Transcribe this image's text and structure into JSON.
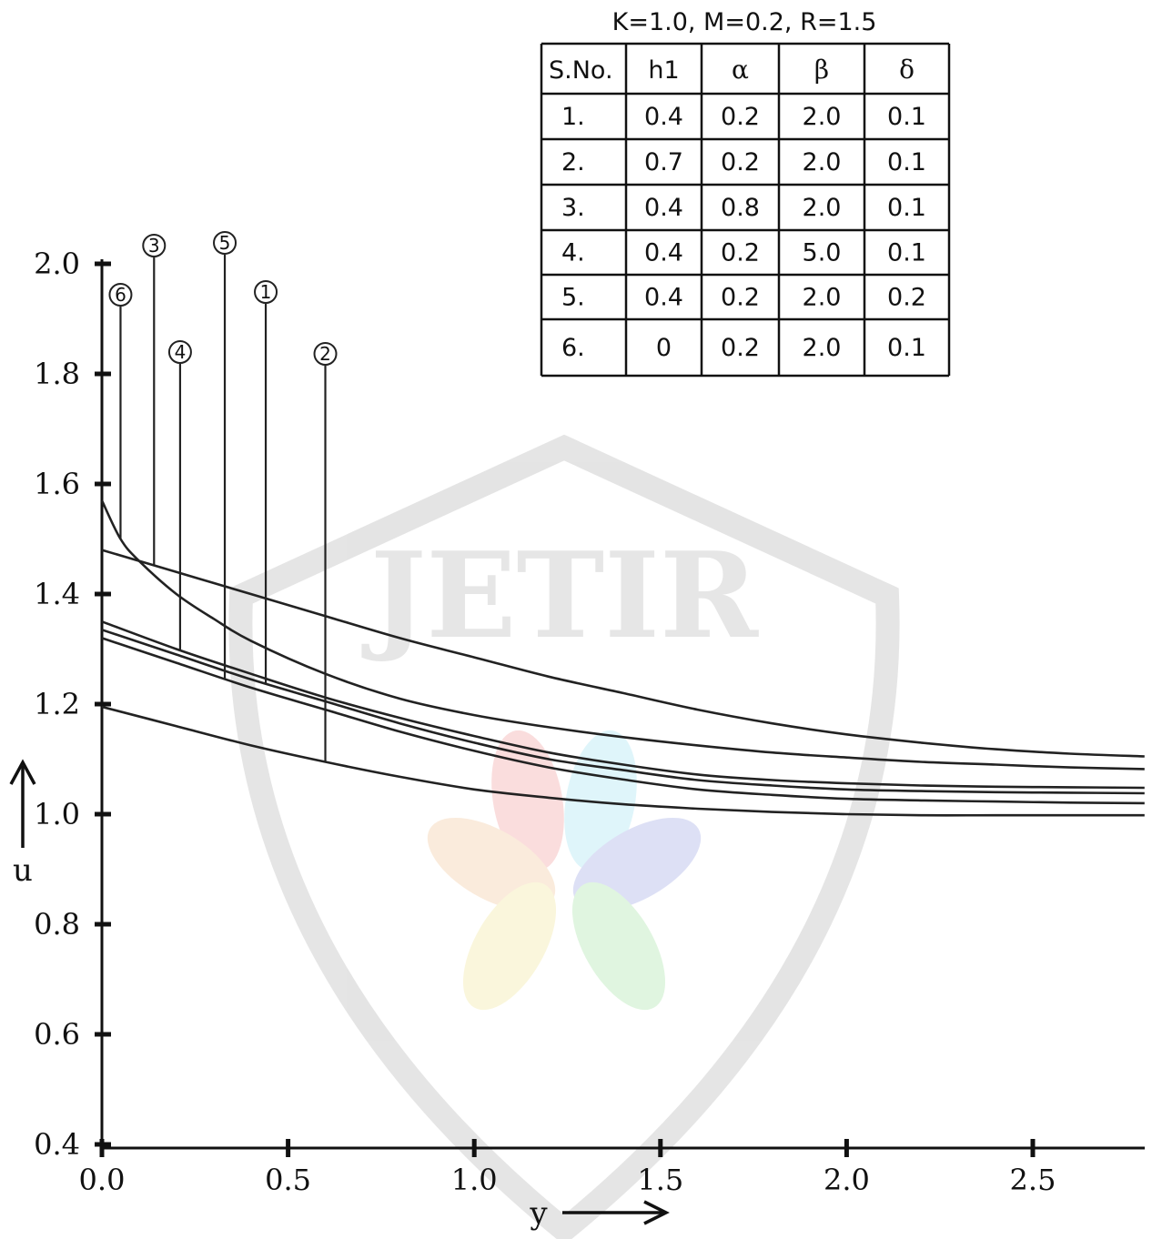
{
  "watermark": {
    "text": "JETIR"
  },
  "chart_data": {
    "type": "line",
    "xlabel": "y",
    "ylabel": "u",
    "xlim": [
      0.0,
      2.8
    ],
    "ylim": [
      0.4,
      2.0
    ],
    "x_ticks": [
      "0.0",
      "0.5",
      "1.0",
      "1.5",
      "2.0",
      "2.5"
    ],
    "y_ticks": [
      "0.4",
      "0.6",
      "0.8",
      "1.0",
      "1.2",
      "1.4",
      "1.6",
      "1.8",
      "2.0"
    ],
    "series": [
      {
        "name": "1",
        "x": [
          0.0,
          0.2,
          0.4,
          0.6,
          0.8,
          1.0,
          1.2,
          1.4,
          1.6,
          1.8,
          2.0,
          2.2,
          2.4,
          2.6,
          2.8
        ],
        "y": [
          1.335,
          1.29,
          1.245,
          1.205,
          1.165,
          1.13,
          1.1,
          1.08,
          1.062,
          1.052,
          1.045,
          1.042,
          1.04,
          1.039,
          1.038
        ]
      },
      {
        "name": "2",
        "x": [
          0.0,
          0.2,
          0.4,
          0.6,
          0.8,
          1.0,
          1.2,
          1.4,
          1.6,
          1.8,
          2.0,
          2.2,
          2.4,
          2.6,
          2.8
        ],
        "y": [
          1.195,
          1.16,
          1.125,
          1.095,
          1.068,
          1.045,
          1.03,
          1.018,
          1.01,
          1.004,
          1.0,
          0.998,
          0.998,
          0.998,
          0.998
        ]
      },
      {
        "name": "3",
        "x": [
          0.0,
          0.2,
          0.4,
          0.6,
          0.8,
          1.0,
          1.2,
          1.4,
          1.6,
          1.8,
          2.0,
          2.2,
          2.4,
          2.6,
          2.8
        ],
        "y": [
          1.48,
          1.44,
          1.4,
          1.36,
          1.32,
          1.285,
          1.25,
          1.22,
          1.19,
          1.165,
          1.145,
          1.13,
          1.118,
          1.11,
          1.105
        ]
      },
      {
        "name": "4",
        "x": [
          0.0,
          0.2,
          0.4,
          0.6,
          0.8,
          1.0,
          1.2,
          1.4,
          1.6,
          1.8,
          2.0,
          2.2,
          2.4,
          2.6,
          2.8
        ],
        "y": [
          1.35,
          1.3,
          1.255,
          1.212,
          1.175,
          1.142,
          1.112,
          1.09,
          1.072,
          1.062,
          1.056,
          1.052,
          1.05,
          1.049,
          1.048
        ]
      },
      {
        "name": "5",
        "x": [
          0.0,
          0.2,
          0.4,
          0.6,
          0.8,
          1.0,
          1.2,
          1.4,
          1.6,
          1.8,
          2.0,
          2.2,
          2.4,
          2.6,
          2.8
        ],
        "y": [
          1.32,
          1.275,
          1.23,
          1.19,
          1.15,
          1.115,
          1.085,
          1.063,
          1.045,
          1.035,
          1.028,
          1.025,
          1.023,
          1.021,
          1.02
        ]
      },
      {
        "name": "6",
        "x": [
          0.0,
          0.05,
          0.1,
          0.2,
          0.3,
          0.4,
          0.6,
          0.8,
          1.0,
          1.2,
          1.4,
          1.6,
          1.8,
          2.0,
          2.2,
          2.4,
          2.6,
          2.8
        ],
        "y": [
          1.57,
          1.5,
          1.46,
          1.4,
          1.355,
          1.315,
          1.255,
          1.21,
          1.18,
          1.158,
          1.14,
          1.125,
          1.112,
          1.103,
          1.095,
          1.09,
          1.085,
          1.082
        ]
      }
    ],
    "callouts": [
      {
        "label": "6",
        "x": 0.05
      },
      {
        "label": "3",
        "x": 0.14
      },
      {
        "label": "4",
        "x": 0.21
      },
      {
        "label": "5",
        "x": 0.33
      },
      {
        "label": "1",
        "x": 0.44
      },
      {
        "label": "2",
        "x": 0.6
      }
    ],
    "legend": "top-right",
    "grid": false
  },
  "parameter_table": {
    "title": "K=1.0, M=0.2, R=1.5",
    "headers": [
      "S.No.",
      "h1",
      "α",
      "β",
      "δ"
    ],
    "rows": [
      [
        "1.",
        "0.4",
        "0.2",
        "2.0",
        "0.1"
      ],
      [
        "2.",
        "0.7",
        "0.2",
        "2.0",
        "0.1"
      ],
      [
        "3.",
        "0.4",
        "0.8",
        "2.0",
        "0.1"
      ],
      [
        "4.",
        "0.4",
        "0.2",
        "5.0",
        "0.1"
      ],
      [
        "5.",
        "0.4",
        "0.2",
        "2.0",
        "0.2"
      ],
      [
        "6.",
        "0",
        "0.2",
        "2.0",
        "0.1"
      ]
    ]
  }
}
